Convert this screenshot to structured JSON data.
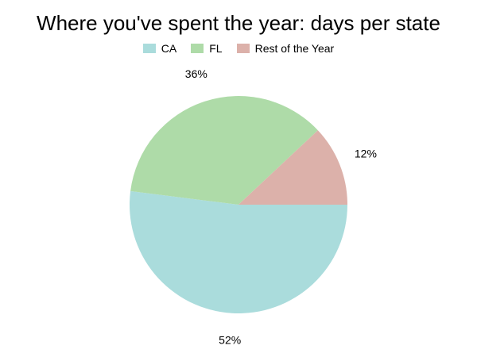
{
  "chart_data": {
    "type": "pie",
    "title": "Where you've spent the year: days per state",
    "legend_position": "top",
    "slices": [
      {
        "name": "CA",
        "value": 52,
        "label": "52%",
        "color": "#aadcdc"
      },
      {
        "name": "FL",
        "value": 36,
        "label": "36%",
        "color": "#aedba8"
      },
      {
        "name": "Rest of the Year",
        "value": 12,
        "label": "12%",
        "color": "#dcb1aa"
      }
    ]
  }
}
